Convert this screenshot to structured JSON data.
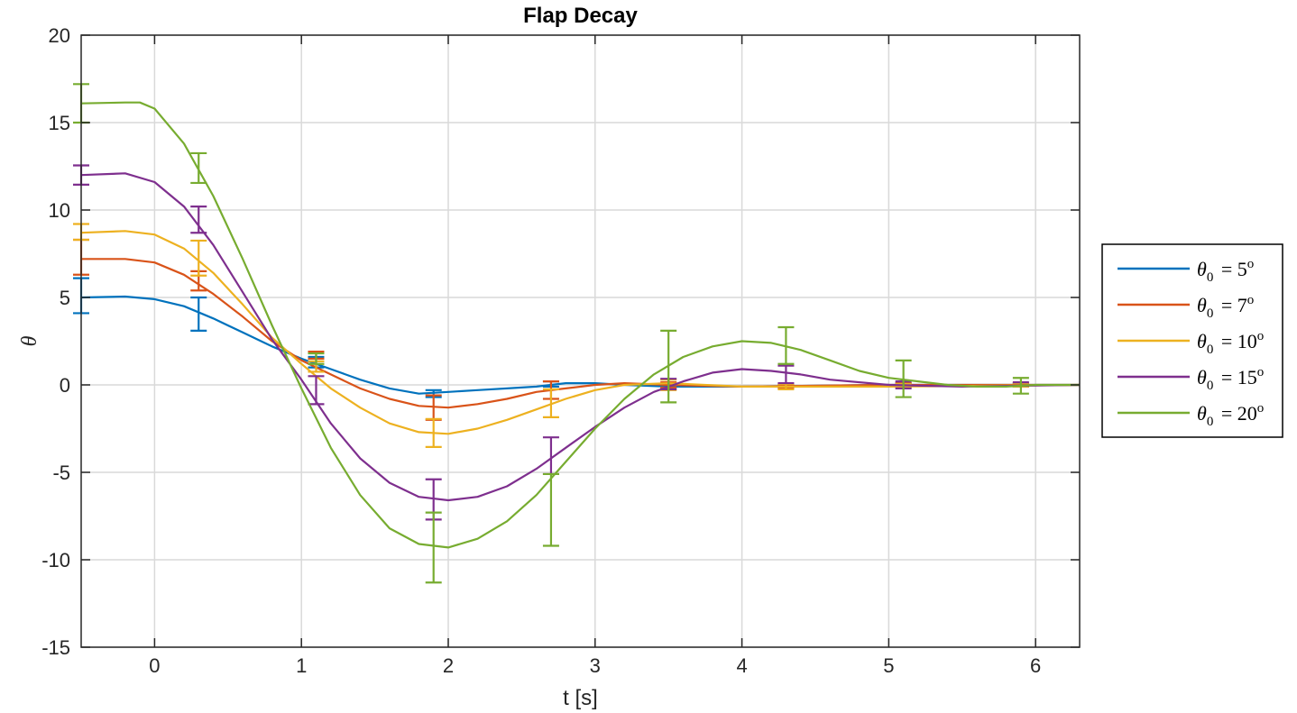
{
  "chart_data": {
    "type": "line",
    "title": "Flap Decay",
    "xlabel": "t [s]",
    "ylabel": "θ",
    "xlim": [
      -0.5,
      6.3
    ],
    "ylim": [
      -15,
      20
    ],
    "xticks": [
      0,
      1,
      2,
      3,
      4,
      5,
      6
    ],
    "yticks": [
      -15,
      -10,
      -5,
      0,
      5,
      10,
      15,
      20
    ],
    "grid": true,
    "legend_position": "outside-right",
    "legend_symbol": "θ",
    "legend_subscript": "0",
    "legend_superscript": "o",
    "series": [
      {
        "name": "θ0 = 5o",
        "legend_label": "= 5",
        "color": "#0072BD",
        "x": [
          -0.5,
          -0.2,
          0.0,
          0.2,
          0.4,
          0.6,
          0.8,
          1.0,
          1.2,
          1.4,
          1.6,
          1.8,
          2.0,
          2.2,
          2.4,
          2.6,
          2.8,
          3.0,
          3.2,
          3.5,
          4.0,
          5.0,
          6.3
        ],
        "y": [
          5.0,
          5.05,
          4.9,
          4.5,
          3.8,
          3.0,
          2.2,
          1.5,
          0.9,
          0.3,
          -0.2,
          -0.5,
          -0.4,
          -0.3,
          -0.2,
          -0.1,
          0.1,
          0.1,
          0.0,
          -0.1,
          -0.1,
          0.0,
          0.0
        ],
        "errorbars": [
          {
            "x": -0.5,
            "y": 5.1,
            "err": 1.0
          },
          {
            "x": 0.3,
            "y": 4.05,
            "err": 0.95
          },
          {
            "x": 1.1,
            "y": 1.3,
            "err": 0.3
          },
          {
            "x": 1.9,
            "y": -0.5,
            "err": 0.2
          },
          {
            "x": 2.7,
            "y": 0.05,
            "err": 0.15
          },
          {
            "x": 3.5,
            "y": -0.1,
            "err": 0.1
          },
          {
            "x": 4.3,
            "y": -0.1,
            "err": 0.1
          },
          {
            "x": 5.1,
            "y": 0.0,
            "err": 0.1
          },
          {
            "x": 5.9,
            "y": 0.0,
            "err": 0.1
          }
        ]
      },
      {
        "name": "θ0 = 7o",
        "legend_label": "= 7",
        "color": "#D95319",
        "x": [
          -0.5,
          -0.2,
          0.0,
          0.2,
          0.4,
          0.6,
          0.8,
          1.0,
          1.2,
          1.4,
          1.6,
          1.8,
          2.0,
          2.2,
          2.4,
          2.6,
          2.8,
          3.0,
          3.2,
          3.5,
          4.0,
          5.0,
          6.3
        ],
        "y": [
          7.2,
          7.2,
          7.0,
          6.3,
          5.2,
          3.9,
          2.5,
          1.4,
          0.6,
          -0.2,
          -0.8,
          -1.2,
          -1.3,
          -1.1,
          -0.8,
          -0.4,
          -0.2,
          0.0,
          0.1,
          0.0,
          -0.1,
          0.0,
          0.0
        ],
        "errorbars": [
          {
            "x": -0.5,
            "y": 7.3,
            "err": 1.0
          },
          {
            "x": 0.3,
            "y": 5.95,
            "err": 0.55
          },
          {
            "x": 1.1,
            "y": 1.7,
            "err": 0.2
          },
          {
            "x": 1.9,
            "y": -1.3,
            "err": 0.7
          },
          {
            "x": 2.7,
            "y": -0.3,
            "err": 0.5
          },
          {
            "x": 3.5,
            "y": 0.0,
            "err": 0.15
          },
          {
            "x": 4.3,
            "y": -0.1,
            "err": 0.1
          },
          {
            "x": 5.1,
            "y": 0.0,
            "err": 0.1
          },
          {
            "x": 5.9,
            "y": 0.0,
            "err": 0.1
          }
        ]
      },
      {
        "name": "θ0 = 10o",
        "legend_label": "= 10",
        "color": "#EDB120",
        "x": [
          -0.5,
          -0.2,
          0.0,
          0.2,
          0.4,
          0.6,
          0.8,
          1.0,
          1.2,
          1.4,
          1.6,
          1.8,
          2.0,
          2.2,
          2.4,
          2.6,
          2.8,
          3.0,
          3.2,
          3.5,
          4.0,
          5.0,
          6.3
        ],
        "y": [
          8.7,
          8.8,
          8.6,
          7.8,
          6.4,
          4.6,
          2.7,
          1.2,
          -0.2,
          -1.3,
          -2.2,
          -2.7,
          -2.8,
          -2.5,
          -2.0,
          -1.4,
          -0.8,
          -0.3,
          0.0,
          0.1,
          -0.1,
          -0.1,
          0.0
        ],
        "errorbars": [
          {
            "x": -0.5,
            "y": 8.75,
            "err": 0.45
          },
          {
            "x": 0.3,
            "y": 7.25,
            "err": 1.0
          },
          {
            "x": 1.1,
            "y": 1.05,
            "err": 0.3
          },
          {
            "x": 1.9,
            "y": -2.75,
            "err": 0.8
          },
          {
            "x": 2.7,
            "y": -1.05,
            "err": 0.8
          },
          {
            "x": 3.5,
            "y": 0.0,
            "err": 0.3
          },
          {
            "x": 4.3,
            "y": -0.1,
            "err": 0.15
          },
          {
            "x": 5.1,
            "y": -0.05,
            "err": 0.1
          },
          {
            "x": 5.9,
            "y": 0.0,
            "err": 0.1
          }
        ]
      },
      {
        "name": "θ0 = 15o",
        "legend_label": "= 15",
        "color": "#7E2F8E",
        "x": [
          -0.5,
          -0.2,
          0.0,
          0.2,
          0.4,
          0.6,
          0.8,
          1.0,
          1.2,
          1.4,
          1.6,
          1.8,
          2.0,
          2.2,
          2.4,
          2.6,
          2.8,
          3.0,
          3.2,
          3.4,
          3.6,
          3.8,
          4.0,
          4.2,
          4.4,
          4.6,
          5.0,
          5.5,
          6.3
        ],
        "y": [
          12.0,
          12.1,
          11.6,
          10.2,
          8.0,
          5.3,
          2.6,
          0.3,
          -2.2,
          -4.2,
          -5.6,
          -6.4,
          -6.6,
          -6.4,
          -5.8,
          -4.8,
          -3.6,
          -2.4,
          -1.3,
          -0.4,
          0.2,
          0.7,
          0.9,
          0.8,
          0.6,
          0.3,
          0.0,
          -0.1,
          0.0
        ],
        "errorbars": [
          {
            "x": -0.5,
            "y": 12.0,
            "err": 0.55
          },
          {
            "x": 0.3,
            "y": 9.45,
            "err": 0.75
          },
          {
            "x": 1.1,
            "y": -0.3,
            "err": 0.8
          },
          {
            "x": 1.9,
            "y": -6.55,
            "err": 1.15
          },
          {
            "x": 2.7,
            "y": -4.05,
            "err": 1.05
          },
          {
            "x": 3.5,
            "y": 0.05,
            "err": 0.3
          },
          {
            "x": 4.3,
            "y": 0.6,
            "err": 0.5
          },
          {
            "x": 5.1,
            "y": 0.0,
            "err": 0.2
          },
          {
            "x": 5.9,
            "y": 0.05,
            "err": 0.1
          }
        ]
      },
      {
        "name": "θ0 = 20o",
        "legend_label": "= 20",
        "color": "#77AC30",
        "x": [
          -0.5,
          -0.2,
          -0.1,
          0.0,
          0.2,
          0.4,
          0.6,
          0.8,
          1.0,
          1.2,
          1.4,
          1.6,
          1.8,
          2.0,
          2.2,
          2.4,
          2.6,
          2.8,
          3.0,
          3.2,
          3.4,
          3.6,
          3.8,
          4.0,
          4.2,
          4.4,
          4.6,
          4.8,
          5.0,
          5.2,
          5.4,
          5.6,
          5.8,
          6.0,
          6.3
        ],
        "y": [
          16.1,
          16.15,
          16.15,
          15.8,
          13.8,
          10.8,
          7.2,
          3.4,
          -0.2,
          -3.6,
          -6.3,
          -8.2,
          -9.1,
          -9.3,
          -8.8,
          -7.8,
          -6.3,
          -4.4,
          -2.5,
          -0.8,
          0.6,
          1.6,
          2.2,
          2.5,
          2.4,
          2.0,
          1.4,
          0.8,
          0.4,
          0.2,
          0.0,
          -0.1,
          -0.1,
          0.0,
          0.0
        ],
        "errorbars": [
          {
            "x": -0.5,
            "y": 16.1,
            "err": 1.1
          },
          {
            "x": 0.3,
            "y": 12.4,
            "err": 0.85
          },
          {
            "x": 1.1,
            "y": 1.5,
            "err": 0.3
          },
          {
            "x": 1.9,
            "y": -9.3,
            "err": 2.0
          },
          {
            "x": 2.7,
            "y": -7.15,
            "err": 2.05
          },
          {
            "x": 3.5,
            "y": 1.05,
            "err": 2.05
          },
          {
            "x": 4.3,
            "y": 2.25,
            "err": 1.05
          },
          {
            "x": 5.1,
            "y": 0.35,
            "err": 1.05
          },
          {
            "x": 5.9,
            "y": -0.05,
            "err": 0.45
          }
        ]
      }
    ]
  }
}
